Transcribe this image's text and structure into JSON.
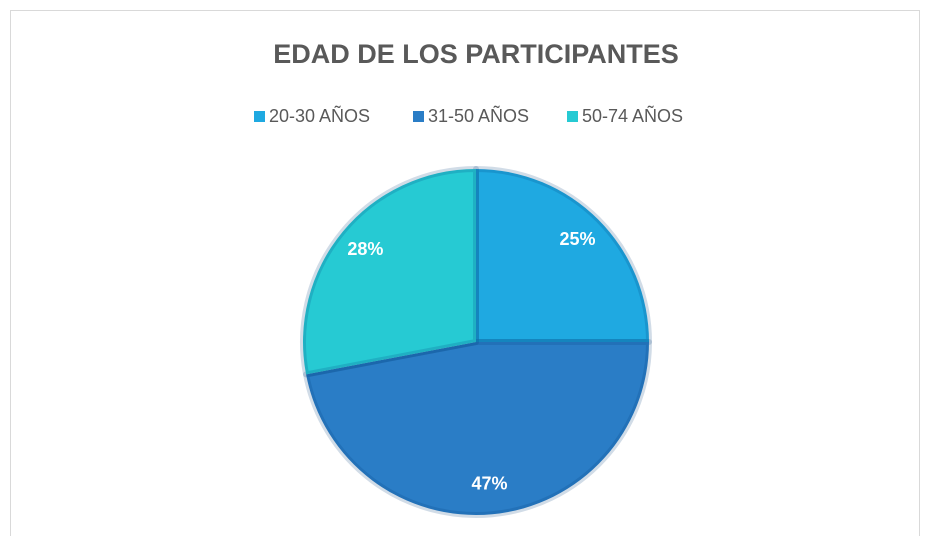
{
  "chart_data": {
    "type": "pie",
    "title": "EDAD DE LOS PARTICIPANTES",
    "categories": [
      "20-30 AÑOS",
      "31-50 AÑOS",
      "50-74 AÑOS"
    ],
    "values": [
      25,
      47,
      28
    ],
    "value_labels": [
      "25%",
      "47%",
      "28%"
    ],
    "colors": [
      "#1fa9e1",
      "#2a7dc6",
      "#26cad3"
    ],
    "legend": "top"
  }
}
